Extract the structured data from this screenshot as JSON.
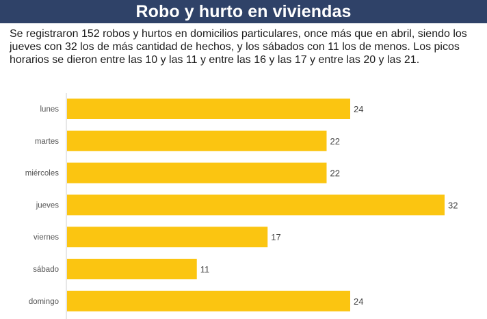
{
  "header": {
    "title": "Robo y hurto en viviendas"
  },
  "description": "Se registraron 152 robos y hurtos en domicilios particulares, once más que en abril, siendo los jueves con 32 los de más cantidad de hechos, y los sábados con 11 los de menos. Los picos horarios se dieron entre las 10 y las 11 y entre las 16 y las 17 y entre las 20 y las 21.",
  "colors": {
    "header_bg": "#2f4268",
    "bar": "#fbc511",
    "axis": "#cfcfcf"
  },
  "chart_data": {
    "type": "bar",
    "orientation": "horizontal",
    "categories": [
      "lunes",
      "martes",
      "miércoles",
      "jueves",
      "viernes",
      "sábado",
      "domingo"
    ],
    "values": [
      24,
      22,
      22,
      32,
      17,
      11,
      24
    ],
    "xlim": [
      0,
      32
    ],
    "grid": false,
    "title": "",
    "xlabel": "",
    "ylabel": ""
  }
}
